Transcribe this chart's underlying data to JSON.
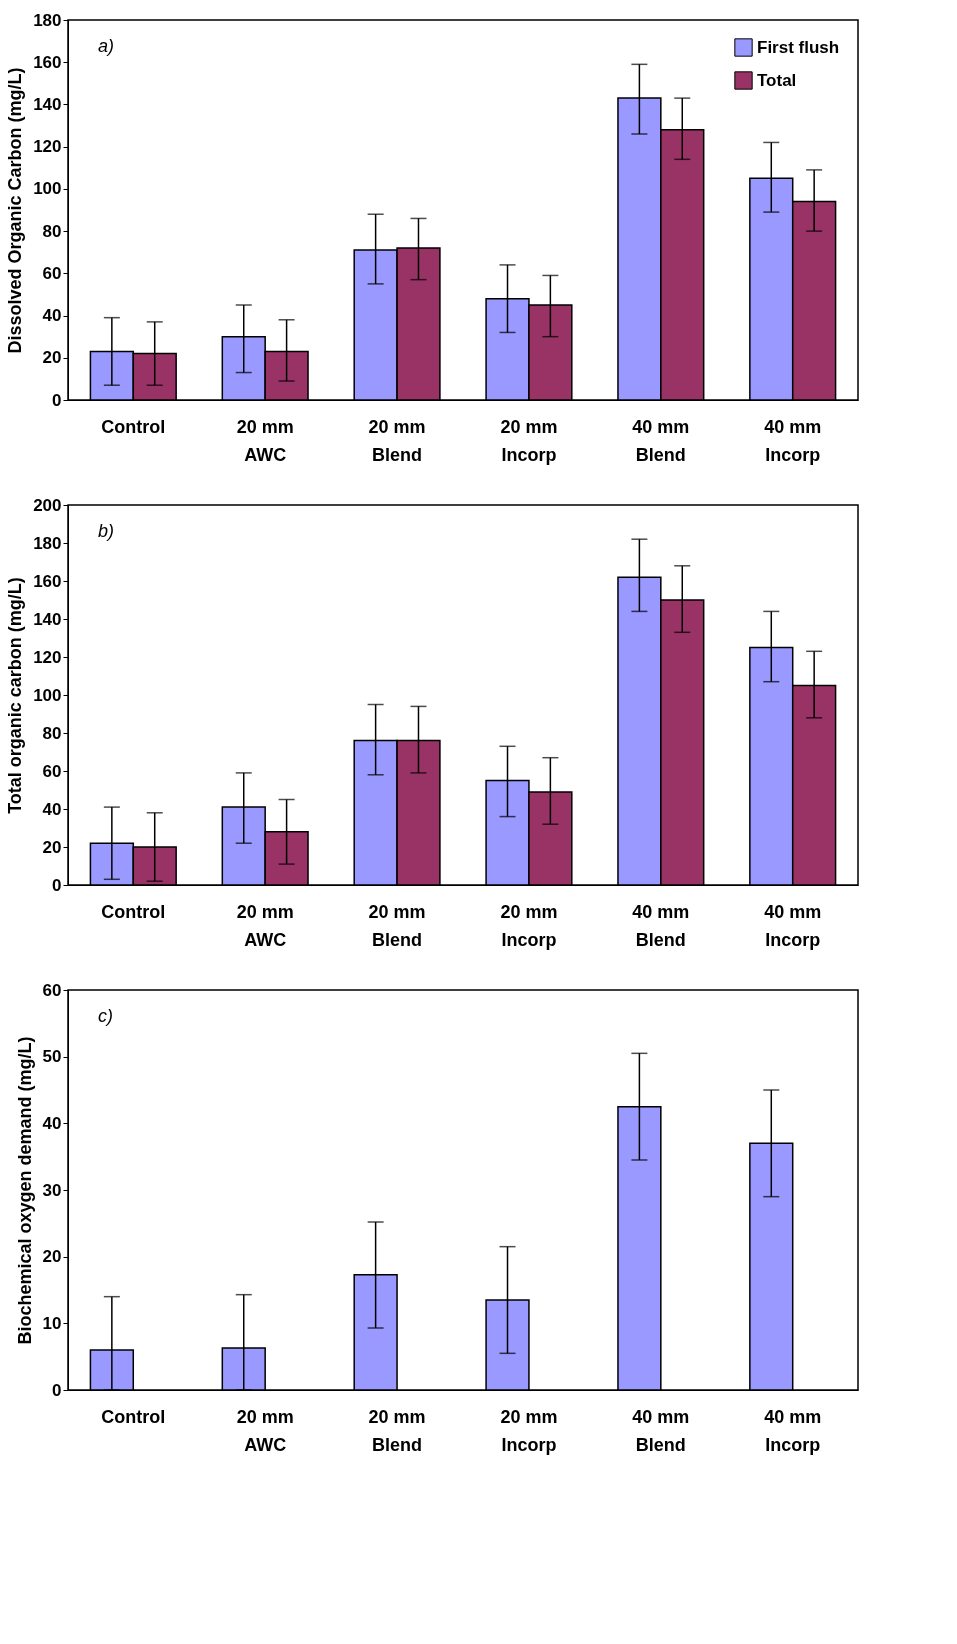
{
  "chart_data": [
    {
      "type": "bar",
      "ylabel": "Dissolved Organic Carbon (mg/L)",
      "annotations": [
        "a)"
      ],
      "categories": [
        "Control",
        "20 mm\nAWC",
        "20 mm\nBlend",
        "20 mm\nIncorp",
        "40 mm\nBlend",
        "40 mm\nIncorp"
      ],
      "ylim": [
        0,
        180
      ],
      "yticks": [
        0,
        20,
        40,
        60,
        80,
        100,
        120,
        140,
        160,
        180
      ],
      "grid": false,
      "legend": "top right",
      "series": [
        {
          "name": "First flush",
          "color": "#9999ff",
          "values": [
            23,
            30,
            71,
            48,
            143,
            105
          ],
          "errors": [
            [
              7,
              39
            ],
            [
              13,
              45
            ],
            [
              55,
              88
            ],
            [
              32,
              64
            ],
            [
              126,
              159
            ],
            [
              89,
              122
            ]
          ]
        },
        {
          "name": "Total",
          "color": "#993366",
          "values": [
            22,
            23,
            72,
            45,
            128,
            94
          ],
          "errors": [
            [
              7,
              37
            ],
            [
              9,
              38
            ],
            [
              57,
              86
            ],
            [
              30,
              59
            ],
            [
              114,
              143
            ],
            [
              80,
              109
            ]
          ]
        }
      ]
    },
    {
      "type": "bar",
      "ylabel": "Total organic carbon (mg/L)",
      "annotations": [
        "b)"
      ],
      "categories": [
        "Control",
        "20 mm\nAWC",
        "20 mm\nBlend",
        "20 mm\nIncorp",
        "40 mm\nBlend",
        "40 mm\nIncorp"
      ],
      "ylim": [
        0,
        200
      ],
      "yticks": [
        0,
        20,
        40,
        60,
        80,
        100,
        120,
        140,
        160,
        180,
        200
      ],
      "grid": false,
      "series": [
        {
          "color": "#9999ff",
          "values": [
            22,
            41,
            76,
            55,
            162,
            125
          ],
          "errors": [
            [
              3,
              41
            ],
            [
              22,
              59
            ],
            [
              58,
              95
            ],
            [
              36,
              73
            ],
            [
              144,
              182
            ],
            [
              107,
              144
            ]
          ]
        },
        {
          "color": "#993366",
          "values": [
            20,
            28,
            76,
            49,
            150,
            105
          ],
          "errors": [
            [
              2,
              38
            ],
            [
              11,
              45
            ],
            [
              59,
              94
            ],
            [
              32,
              67
            ],
            [
              133,
              168
            ],
            [
              88,
              123
            ]
          ]
        }
      ]
    },
    {
      "type": "bar",
      "ylabel": "Biochemical oxygen demand (mg/L)",
      "annotations": [
        "c)"
      ],
      "categories": [
        "Control",
        "20 mm\nAWC",
        "20 mm\nBlend",
        "20 mm\nIncorp",
        "40 mm\nBlend",
        "40 mm\nIncorp"
      ],
      "ylim": [
        0,
        60
      ],
      "yticks": [
        0,
        10,
        20,
        30,
        40,
        50,
        60
      ],
      "grid": false,
      "series": [
        {
          "color": "#9999ff",
          "values": [
            6,
            6.3,
            17.3,
            13.5,
            42.5,
            37
          ],
          "errors": [
            [
              0,
              14
            ],
            [
              0,
              14.3
            ],
            [
              9.3,
              25.2
            ],
            [
              5.5,
              21.5
            ],
            [
              34.5,
              50.5
            ],
            [
              29,
              45
            ]
          ]
        }
      ]
    }
  ]
}
